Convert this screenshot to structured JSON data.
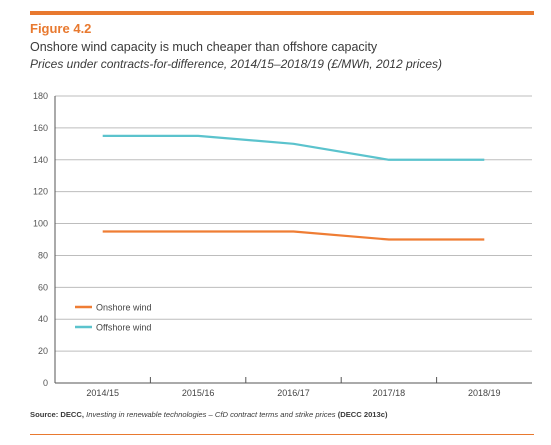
{
  "figure_label": "Figure 4.2",
  "title": "Onshore wind capacity is much cheaper than offshore capacity",
  "subtitle": "Prices under contracts-for-difference, 2014/15–2018/19 (£/MWh, 2012 prices)",
  "source": {
    "prefix": "Source: DECC, ",
    "italic": "Investing in renewable technologies – CfD contract terms and strike prices",
    "suffix": " (DECC 2013c)"
  },
  "colors": {
    "accent": "#e8792f",
    "onshore": "#ef7d34",
    "offshore": "#5bc3cd",
    "grid": "#bdbdbd",
    "axis": "#555555"
  },
  "chart_data": {
    "type": "line",
    "categories": [
      "2014/15",
      "2015/16",
      "2016/17",
      "2017/18",
      "2018/19"
    ],
    "series": [
      {
        "name": "Onshore wind",
        "values": [
          95,
          95,
          95,
          90,
          90
        ]
      },
      {
        "name": "Offshore wind",
        "values": [
          155,
          155,
          150,
          140,
          140
        ]
      }
    ],
    "yticks": [
      0,
      20,
      40,
      60,
      80,
      100,
      120,
      140,
      160,
      180
    ],
    "ylim": [
      0,
      180
    ],
    "grid": true,
    "legend_position": "bottom-left"
  }
}
